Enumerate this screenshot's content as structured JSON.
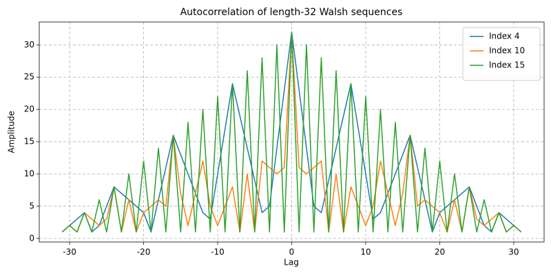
{
  "chart_data": {
    "type": "line",
    "title": "Autocorrelation of length-32 Walsh sequences",
    "xlabel": "Lag",
    "ylabel": "Amplitude",
    "x": [
      -31,
      -30,
      -29,
      -28,
      -27,
      -26,
      -25,
      -24,
      -23,
      -22,
      -21,
      -20,
      -19,
      -18,
      -17,
      -16,
      -15,
      -14,
      -13,
      -12,
      -11,
      -10,
      -9,
      -8,
      -7,
      -6,
      -5,
      -4,
      -3,
      -2,
      -1,
      0,
      1,
      2,
      3,
      4,
      5,
      6,
      7,
      8,
      9,
      10,
      11,
      12,
      13,
      14,
      15,
      16,
      17,
      18,
      19,
      20,
      21,
      22,
      23,
      24,
      25,
      26,
      27,
      28,
      29,
      30,
      31
    ],
    "series": [
      {
        "name": "Index 4",
        "color": "#1f77b4",
        "values": [
          1,
          2,
          3,
          4,
          1,
          2,
          5,
          8,
          7,
          6,
          5,
          4,
          1,
          6,
          11,
          16,
          13,
          10,
          7,
          4,
          3,
          10,
          17,
          24,
          19,
          14,
          9,
          4,
          5,
          14,
          23,
          32,
          23,
          14,
          5,
          4,
          9,
          14,
          19,
          24,
          17,
          10,
          3,
          4,
          7,
          10,
          13,
          16,
          11,
          6,
          1,
          4,
          5,
          6,
          7,
          8,
          5,
          2,
          1,
          4,
          3,
          2,
          1
        ]
      },
      {
        "name": "Index 10",
        "color": "#ff7f0e",
        "values": [
          1,
          2,
          1,
          4,
          3,
          2,
          3,
          8,
          1,
          6,
          1,
          4,
          5,
          6,
          5,
          16,
          7,
          2,
          7,
          12,
          5,
          2,
          5,
          8,
          1,
          10,
          1,
          12,
          11,
          10,
          11,
          32,
          11,
          10,
          11,
          12,
          1,
          10,
          1,
          8,
          5,
          2,
          5,
          12,
          7,
          2,
          7,
          16,
          5,
          6,
          5,
          4,
          1,
          6,
          1,
          8,
          3,
          2,
          3,
          4,
          1,
          2,
          1
        ]
      },
      {
        "name": "Index 15",
        "color": "#2ca02c",
        "values": [
          1,
          2,
          1,
          4,
          1,
          6,
          1,
          8,
          1,
          10,
          1,
          12,
          1,
          14,
          1,
          16,
          1,
          18,
          1,
          20,
          1,
          22,
          1,
          24,
          1,
          26,
          1,
          28,
          1,
          30,
          1,
          32,
          1,
          30,
          1,
          28,
          1,
          26,
          1,
          24,
          1,
          22,
          1,
          20,
          1,
          18,
          1,
          16,
          1,
          14,
          1,
          12,
          1,
          10,
          1,
          8,
          1,
          6,
          1,
          4,
          1,
          2,
          1
        ]
      }
    ],
    "xlim": [
      -34.1,
      34.1
    ],
    "ylim": [
      -0.55,
      33.55
    ],
    "xticks": [
      -30,
      -20,
      -10,
      0,
      10,
      20,
      30
    ],
    "yticks": [
      0,
      5,
      10,
      15,
      20,
      25,
      30
    ],
    "grid": true,
    "legend": "upper-right"
  }
}
